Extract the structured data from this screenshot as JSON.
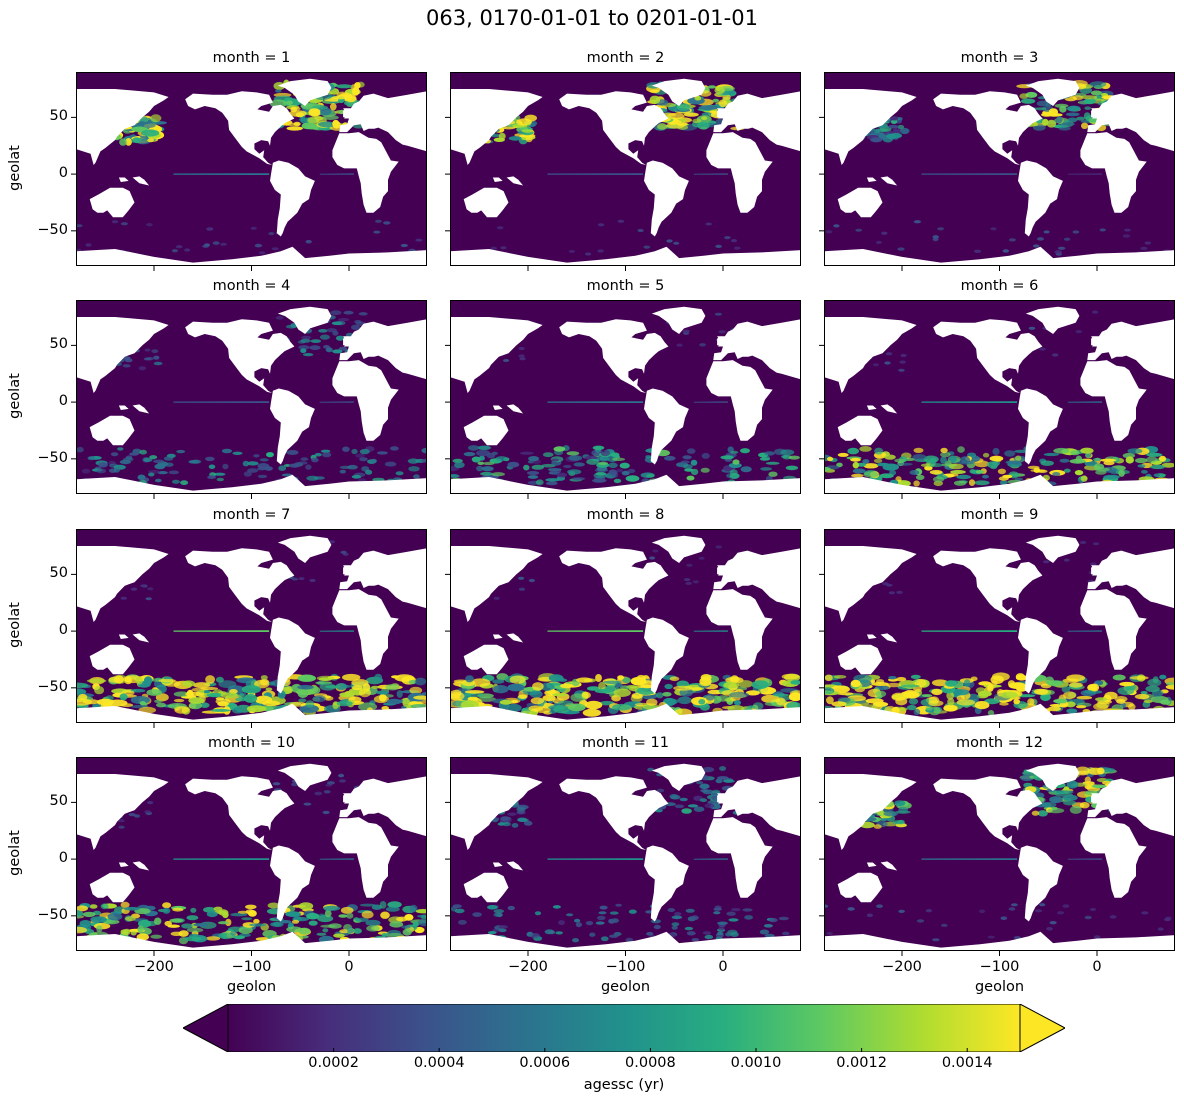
{
  "title": "063, 0170-01-01 to 0201-01-01",
  "chart_data": {
    "type": "heatmap",
    "variable": "agessc (yr)",
    "colormap": "viridis",
    "color_range": [
      0,
      0.0015
    ],
    "colorbar_extend": "both",
    "colorbar_ticks": [
      "0.0002",
      "0.0004",
      "0.0006",
      "0.0008",
      "0.0010",
      "0.0012",
      "0.0014"
    ],
    "xlabel": "geolon",
    "ylabel": "geolat",
    "xlim": [
      -280,
      80
    ],
    "ylim": [
      -81,
      90
    ],
    "xticks": [
      "−200",
      "−100",
      "0"
    ],
    "yticks": [
      "50",
      "0",
      "−50"
    ],
    "panels": [
      {
        "title": "month = 1",
        "n_atlantic": 1.0,
        "nw_pacific": 0.9,
        "southern": 0.1,
        "equatorial": 0.35
      },
      {
        "title": "month = 2",
        "n_atlantic": 0.95,
        "nw_pacific": 0.75,
        "southern": 0.05,
        "equatorial": 0.3
      },
      {
        "title": "month = 3",
        "n_atlantic": 0.8,
        "nw_pacific": 0.55,
        "southern": 0.1,
        "equatorial": 0.25
      },
      {
        "title": "month = 4",
        "n_atlantic": 0.4,
        "nw_pacific": 0.2,
        "southern": 0.45,
        "equatorial": 0.3
      },
      {
        "title": "month = 5",
        "n_atlantic": 0.1,
        "nw_pacific": 0.05,
        "southern": 0.6,
        "equatorial": 0.4
      },
      {
        "title": "month = 6",
        "n_atlantic": 0.05,
        "nw_pacific": 0.05,
        "southern": 0.75,
        "equatorial": 0.45
      },
      {
        "title": "month = 7",
        "n_atlantic": 0.05,
        "nw_pacific": 0.05,
        "southern": 1.0,
        "equatorial": 0.7
      },
      {
        "title": "month = 8",
        "n_atlantic": 0.05,
        "nw_pacific": 0.05,
        "southern": 1.0,
        "equatorial": 0.75
      },
      {
        "title": "month = 9",
        "n_atlantic": 0.05,
        "nw_pacific": 0.05,
        "southern": 0.95,
        "equatorial": 0.6
      },
      {
        "title": "month = 10",
        "n_atlantic": 0.15,
        "nw_pacific": 0.1,
        "southern": 0.8,
        "equatorial": 0.5
      },
      {
        "title": "month = 11",
        "n_atlantic": 0.45,
        "nw_pacific": 0.4,
        "southern": 0.35,
        "equatorial": 0.45
      },
      {
        "title": "month = 12",
        "n_atlantic": 0.85,
        "nw_pacific": 0.7,
        "southern": 0.1,
        "equatorial": 0.35
      }
    ]
  }
}
